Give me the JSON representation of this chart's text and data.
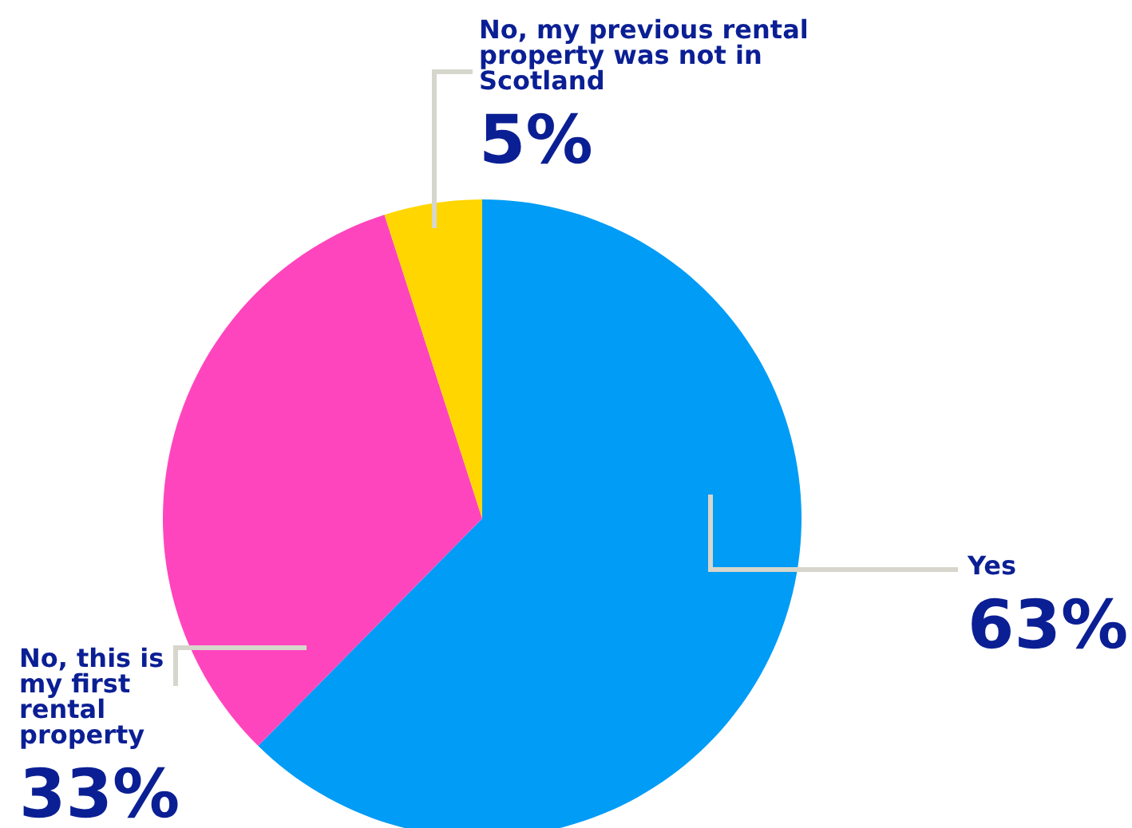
{
  "chart_data": {
    "type": "pie",
    "categories": [
      "Yes",
      "No, this is my first rental property",
      "No, my previous rental property was not in Scotland"
    ],
    "values": [
      63,
      33,
      5
    ],
    "value_labels": [
      "63%",
      "33%",
      "5%"
    ],
    "colors": [
      "#009cf6",
      "#ff45bd",
      "#ffd600"
    ],
    "legend": false
  }
}
